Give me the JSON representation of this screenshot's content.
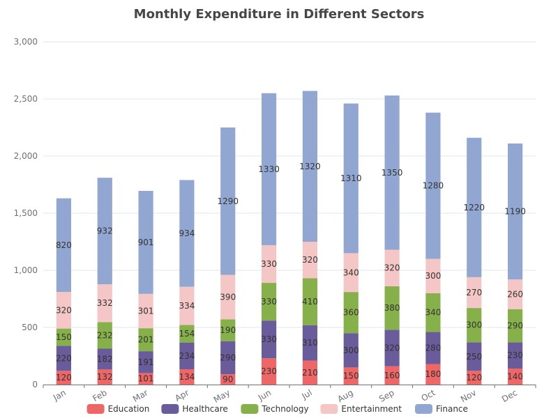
{
  "chart_data": {
    "type": "bar",
    "stacked": true,
    "title": "Monthly Expenditure in Different Sectors",
    "categories": [
      "Jan",
      "Feb",
      "Mar",
      "Apr",
      "May",
      "Jun",
      "Jul",
      "Aug",
      "Sep",
      "Oct",
      "Nov",
      "Dec"
    ],
    "series": [
      {
        "name": "Education",
        "color": "#ee6666",
        "values": [
          120,
          132,
          101,
          134,
          90,
          230,
          210,
          150,
          160,
          180,
          120,
          140
        ]
      },
      {
        "name": "Healthcare",
        "color": "#6a5c9a",
        "values": [
          220,
          182,
          191,
          234,
          290,
          330,
          310,
          300,
          320,
          280,
          250,
          230
        ]
      },
      {
        "name": "Technology",
        "color": "#86b04a",
        "values": [
          150,
          232,
          201,
          154,
          190,
          330,
          410,
          360,
          380,
          340,
          300,
          290
        ]
      },
      {
        "name": "Entertainment",
        "color": "#f4c6c6",
        "values": [
          320,
          332,
          301,
          334,
          390,
          330,
          320,
          340,
          320,
          300,
          270,
          260
        ]
      },
      {
        "name": "Finance",
        "color": "#91a7d1",
        "values": [
          820,
          932,
          901,
          934,
          1290,
          1330,
          1320,
          1310,
          1350,
          1280,
          1220,
          1190
        ]
      }
    ],
    "ylim": [
      0,
      3000
    ],
    "yticks": [
      "0",
      "500",
      "1,000",
      "1,500",
      "2,000",
      "2,500",
      "3,000"
    ],
    "xlabel": "",
    "ylabel": "",
    "grid": true,
    "legend_position": "bottom"
  }
}
